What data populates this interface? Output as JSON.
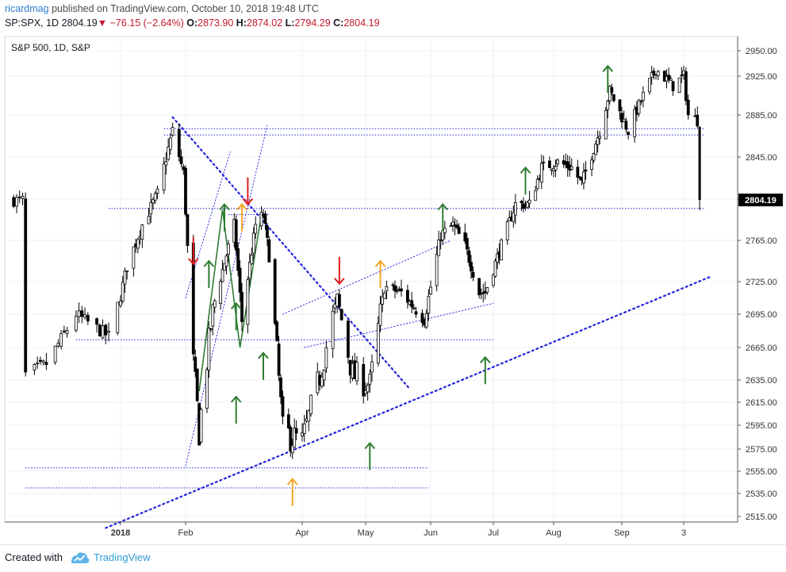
{
  "header": {
    "user": "ricardmag",
    "published": "published on TradingView.com, October 10, 2018 19:48 UTC",
    "symbol": "SP:SPX, 1D",
    "last": "2804.19",
    "change_arrow": "▼",
    "change": "−76.15 (−2.64%)",
    "o_label": "O:",
    "o_val": "2873.90",
    "h_label": "H:",
    "h_val": "2874.02",
    "l_label": "L:",
    "l_val": "2794.29",
    "c_label": "C:",
    "c_val": "2804.19"
  },
  "footer": {
    "created": "Created with",
    "brand": "TradingView"
  },
  "colors": {
    "up_arrow": "#2e7d32",
    "down_arrow": "#e01b1b",
    "orange_arrow": "#f5a623",
    "trendline": "#2222dd",
    "candle": "#000000",
    "price_tag": "#000000"
  },
  "chart_data": {
    "type": "candlestick",
    "title": "S&P 500, 1D, S&P",
    "y_ticks": [
      2950,
      2925,
      2885,
      2845,
      2805,
      2765,
      2725,
      2695,
      2665,
      2635,
      2615,
      2595,
      2575,
      2555,
      2535,
      2515
    ],
    "y_tick_labels": [
      "2950.00",
      "2925.00",
      "2885.00",
      "2845.00",
      "2805.00",
      "2765.00",
      "2725.00",
      "2695.00",
      "2665.00",
      "2635.00",
      "2615.00",
      "2595.00",
      "2575.00",
      "2555.00",
      "2535.00",
      "2515.00"
    ],
    "x_labels": [
      "2018",
      "Feb",
      "Apr",
      "May",
      "Jun",
      "Jul",
      "Aug",
      "Sep",
      "3"
    ],
    "last_price_label": "2804.19",
    "anchors": [
      [
        "2017-12-01",
        2640
      ],
      [
        "2017-12-08",
        2650
      ],
      [
        "2017-12-18",
        2695
      ],
      [
        "2017-12-29",
        2675
      ],
      [
        "2018-01-05",
        2740
      ],
      [
        "2018-01-12",
        2780
      ],
      [
        "2018-01-19",
        2810
      ],
      [
        "2018-01-26",
        2870
      ],
      [
        "2018-01-31",
        2830
      ],
      [
        "2018-02-05",
        2650
      ],
      [
        "2018-02-08",
        2590
      ],
      [
        "2018-02-15",
        2700
      ],
      [
        "2018-02-26",
        2780
      ],
      [
        "2018-03-02",
        2690
      ],
      [
        "2018-03-09",
        2780
      ],
      [
        "2018-03-13",
        2790
      ],
      [
        "2018-03-16",
        2750
      ],
      [
        "2018-03-23",
        2590
      ],
      [
        "2018-04-02",
        2580
      ],
      [
        "2018-04-09",
        2630
      ],
      [
        "2018-04-18",
        2710
      ],
      [
        "2018-04-25",
        2640
      ],
      [
        "2018-05-03",
        2630
      ],
      [
        "2018-05-10",
        2720
      ],
      [
        "2018-05-18",
        2715
      ],
      [
        "2018-05-29",
        2690
      ],
      [
        "2018-06-06",
        2770
      ],
      [
        "2018-06-12",
        2780
      ],
      [
        "2018-06-18",
        2760
      ],
      [
        "2018-06-25",
        2715
      ],
      [
        "2018-06-28",
        2715
      ],
      [
        "2018-07-06",
        2760
      ],
      [
        "2018-07-13",
        2800
      ],
      [
        "2018-07-20",
        2800
      ],
      [
        "2018-07-26",
        2835
      ],
      [
        "2018-08-03",
        2840
      ],
      [
        "2018-08-10",
        2835
      ],
      [
        "2018-08-15",
        2820
      ],
      [
        "2018-08-24",
        2870
      ],
      [
        "2018-08-29",
        2910
      ],
      [
        "2018-09-07",
        2870
      ],
      [
        "2018-09-14",
        2905
      ],
      [
        "2018-09-20",
        2932
      ],
      [
        "2018-09-28",
        2915
      ],
      [
        "2018-10-03",
        2925
      ],
      [
        "2018-10-05",
        2885
      ],
      [
        "2018-10-09",
        2880
      ],
      [
        "2018-10-10",
        2804
      ]
    ],
    "last_bar": {
      "date": "2018-10-10",
      "open": 2873.9,
      "high": 2874.02,
      "low": 2794.29,
      "close": 2804.19
    },
    "horizontal_levels": [
      {
        "price": 2872,
        "from": "2018-01-22",
        "to": "2018-10-12"
      },
      {
        "price": 2866,
        "from": "2018-01-22",
        "to": "2018-10-12"
      },
      {
        "price": 2796,
        "from": "2017-12-29",
        "to": "2018-10-12"
      },
      {
        "price": 2790,
        "from": "2018-02-23",
        "to": "2018-03-16"
      },
      {
        "price": 2672,
        "from": "2017-12-18",
        "to": "2018-07-02"
      },
      {
        "price": 2558,
        "from": "2017-12-01",
        "to": "2018-05-31"
      },
      {
        "price": 2540,
        "from": "2017-12-01",
        "to": "2018-05-31"
      }
    ],
    "trend_lines": [
      {
        "from": [
          "2018-01-26",
          2883
        ],
        "to": [
          "2018-05-22",
          2627
        ],
        "style": "thick-dotted"
      },
      {
        "from": [
          "2017-12-28",
          2505
        ],
        "to": [
          "2018-10-15",
          2730
        ],
        "style": "thick-dotted"
      },
      {
        "from": [
          "2018-03-23",
          2695
        ],
        "to": [
          "2018-06-11",
          2765
        ],
        "style": "thin-dotted"
      },
      {
        "from": [
          "2018-04-03",
          2665
        ],
        "to": [
          "2018-07-02",
          2705
        ],
        "style": "thin-dotted"
      },
      {
        "from": [
          "2018-02-01",
          2560
        ],
        "to": [
          "2018-03-15",
          2875
        ],
        "style": "thin-dotted"
      },
      {
        "from": [
          "2018-02-01",
          2710
        ],
        "to": [
          "2018-02-24",
          2850
        ],
        "style": "thin-dotted"
      }
    ],
    "arrows": [
      {
        "date": "2018-02-05",
        "price": 2742,
        "dir": "down",
        "color": "red"
      },
      {
        "date": "2018-03-05",
        "price": 2800,
        "dir": "down",
        "color": "red"
      },
      {
        "date": "2018-04-19",
        "price": 2723,
        "dir": "down",
        "color": "red"
      },
      {
        "date": "2018-03-02",
        "price": 2800,
        "dir": "up",
        "color": "orange"
      },
      {
        "date": "2018-05-08",
        "price": 2745,
        "dir": "up",
        "color": "orange"
      },
      {
        "date": "2018-03-28",
        "price": 2548,
        "dir": "up",
        "color": "orange"
      },
      {
        "date": "2018-02-13",
        "price": 2745,
        "dir": "up",
        "color": "green"
      },
      {
        "date": "2018-02-21",
        "price": 2800,
        "dir": "up",
        "color": "green"
      },
      {
        "date": "2018-02-27",
        "price": 2705,
        "dir": "up",
        "color": "green"
      },
      {
        "date": "2018-02-27",
        "price": 2620,
        "dir": "up",
        "color": "green"
      },
      {
        "date": "2018-03-13",
        "price": 2660,
        "dir": "up",
        "color": "green"
      },
      {
        "date": "2018-05-03",
        "price": 2580,
        "dir": "up",
        "color": "green"
      },
      {
        "date": "2018-06-07",
        "price": 2800,
        "dir": "up",
        "color": "green"
      },
      {
        "date": "2018-06-28",
        "price": 2656,
        "dir": "up",
        "color": "green"
      },
      {
        "date": "2018-07-18",
        "price": 2835,
        "dir": "up",
        "color": "green"
      },
      {
        "date": "2018-08-28",
        "price": 2935,
        "dir": "up",
        "color": "green"
      }
    ],
    "green_swing_path": [
      [
        "2018-02-08",
        2625
      ],
      [
        "2018-02-20",
        2795
      ],
      [
        "2018-03-01",
        2665
      ],
      [
        "2018-03-12",
        2790
      ]
    ]
  }
}
